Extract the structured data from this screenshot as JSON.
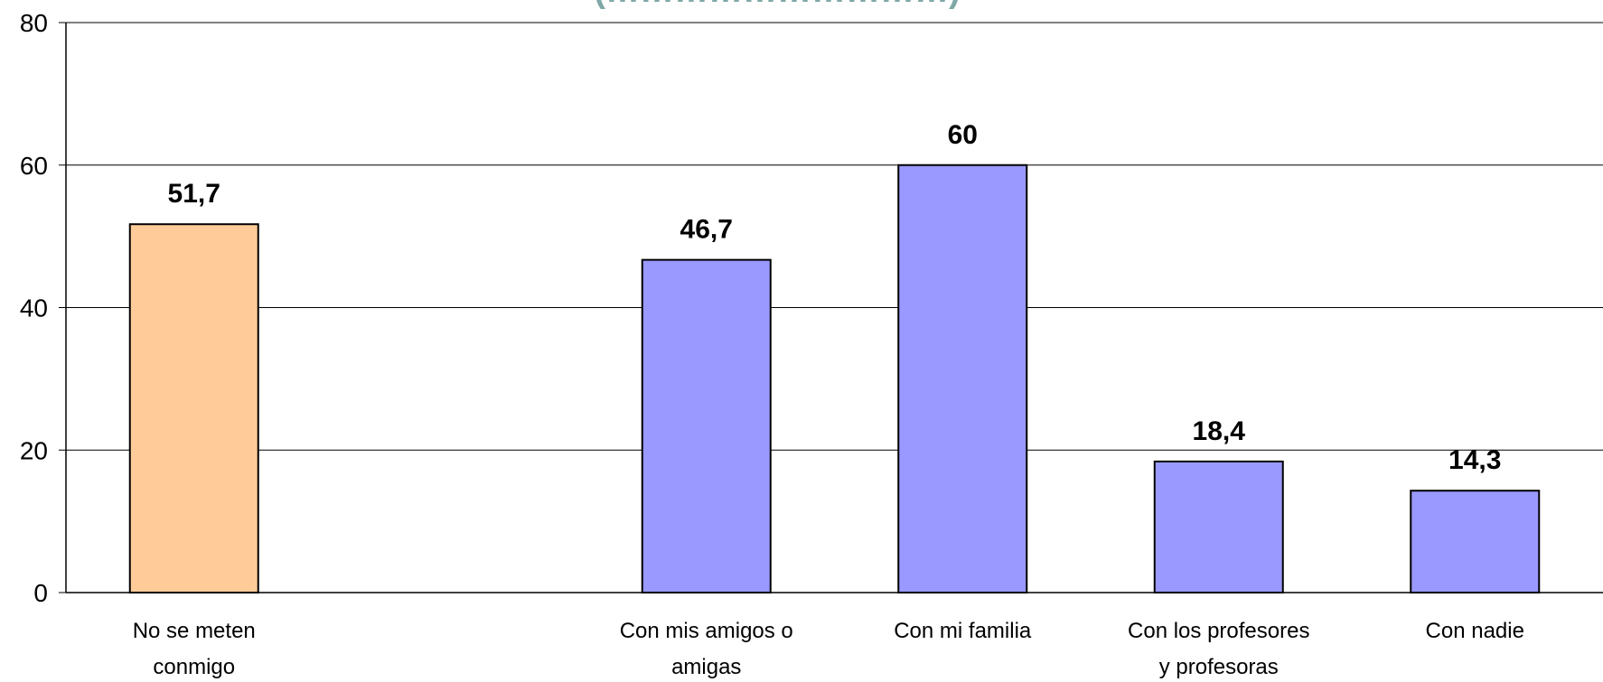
{
  "chart_data": {
    "type": "bar",
    "title_fragment": "(…………………………)",
    "categories": [
      [
        "No se meten",
        "conmigo"
      ],
      [],
      [
        "Con mis amigos o",
        "amigas"
      ],
      [
        "Con mi familia"
      ],
      [
        "Con los profesores",
        "y profesoras"
      ],
      [
        "Con nadie"
      ]
    ],
    "values": [
      51.7,
      null,
      46.7,
      60,
      18.4,
      14.3
    ],
    "value_labels": [
      "51,7",
      "",
      "46,7",
      "60",
      "18,4",
      "14,3"
    ],
    "bar_colors": [
      "#ffcc99",
      null,
      "#9999ff",
      "#9999ff",
      "#9999ff",
      "#9999ff"
    ],
    "ylim": [
      0,
      80
    ],
    "yticks": [
      0,
      20,
      40,
      60,
      80
    ],
    "grid": true
  }
}
